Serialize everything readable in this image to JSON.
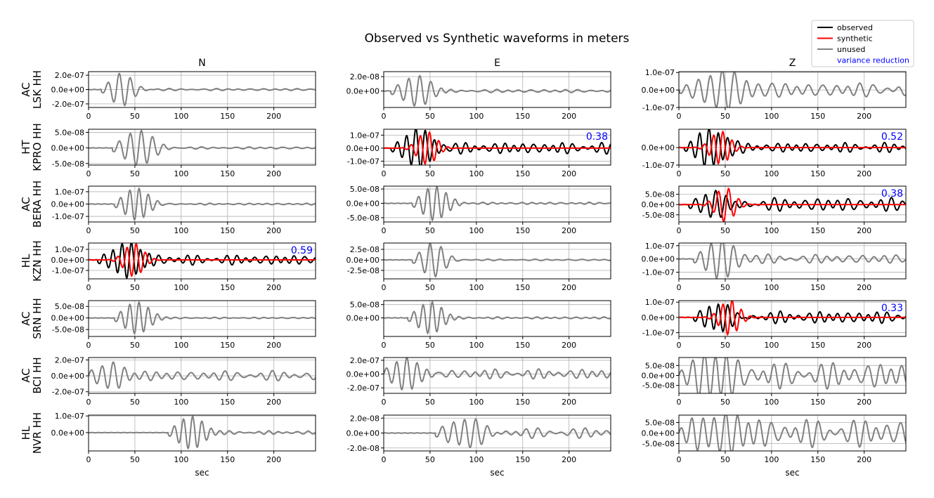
{
  "title": "Observed vs Synthetic waveforms in meters",
  "components": [
    "N",
    "E",
    "Z"
  ],
  "xlabel": "sec",
  "xlim": [
    0,
    245
  ],
  "xticks": [
    0,
    50,
    100,
    150,
    200
  ],
  "legend": {
    "placement": "top-right",
    "entries": [
      {
        "label": "observed",
        "color": "#000000"
      },
      {
        "label": "synthetic",
        "color": "#ff0000"
      },
      {
        "label": "unused",
        "color": "#808080"
      },
      {
        "label": "variance reduction",
        "color": "#0000ff",
        "text_only": true
      }
    ]
  },
  "colors": {
    "observed": "#000000",
    "synthetic": "#ff0000",
    "unused": "#808080",
    "variance_reduction": "#0000ff"
  },
  "chart_data": {
    "type": "line",
    "grid": true,
    "rows": [
      {
        "station": "AC\nLSK HH",
        "panels": [
          {
            "comp": "N",
            "ylim": [
              -2.5e-07,
              2.5e-07
            ],
            "yticks": [
              -2e-07,
              0,
              2e-07
            ],
            "yticklabels": [
              "-2.0e-07",
              "0.0e+00",
              "2.0e-07"
            ],
            "used": false,
            "vr": null,
            "amp": 2.3e-07,
            "onset": 18,
            "period": 12,
            "cycles": 3,
            "coda": 0.06
          },
          {
            "comp": "E",
            "ylim": [
              -2.3e-08,
              2.7e-08
            ],
            "yticks": [
              0,
              2e-08
            ],
            "yticklabels": [
              "0.0e+00",
              "2.0e-08"
            ],
            "used": false,
            "vr": null,
            "amp": 2.2e-08,
            "onset": 12,
            "period": 12,
            "cycles": 4,
            "coda": 0.1
          },
          {
            "comp": "Z",
            "ylim": [
              -1e-07,
              1.05e-07
            ],
            "yticks": [
              -1e-07,
              0,
              1e-07
            ],
            "yticklabels": [
              "-1.0e-07",
              "0.0e+00",
              "1.0e-07"
            ],
            "used": false,
            "vr": null,
            "amp": 8e-08,
            "onset": 5,
            "period": 13,
            "cycles": 6,
            "coda": 0.5
          }
        ]
      },
      {
        "station": "HT\nKPRO HH",
        "panels": [
          {
            "comp": "N",
            "ylim": [
              -5.5e-08,
              6e-08
            ],
            "yticks": [
              -5e-08,
              0,
              5e-08
            ],
            "yticklabels": [
              "-5.0e-08",
              "0.0e+00",
              "5.0e-08"
            ],
            "used": false,
            "vr": null,
            "amp": 5.5e-08,
            "onset": 30,
            "period": 12,
            "cycles": 4,
            "coda": 0.06
          },
          {
            "comp": "E",
            "ylim": [
              -1.3e-07,
              1.45e-07
            ],
            "yticks": [
              -1e-07,
              0,
              1e-07
            ],
            "yticklabels": [
              "-1.0e-07",
              "0.0e+00",
              "1.0e-07"
            ],
            "used": true,
            "vr": "0.38",
            "amp": 1.2e-07,
            "onset": 12,
            "period": 10,
            "cycles": 5,
            "coda": 0.35
          },
          {
            "comp": "Z",
            "ylim": [
              -1e-07,
              1.05e-07
            ],
            "yticks": [
              -1e-07,
              0
            ],
            "yticklabels": [
              "-1.0e-07",
              "0.0e+00"
            ],
            "used": true,
            "vr": "0.52",
            "amp": 9e-08,
            "onset": 10,
            "period": 10,
            "cycles": 5,
            "coda": 0.3
          }
        ]
      },
      {
        "station": "AC\nBERA HH",
        "panels": [
          {
            "comp": "N",
            "ylim": [
              -1.45e-07,
              1.45e-07
            ],
            "yticks": [
              -1e-07,
              0,
              1e-07
            ],
            "yticklabels": [
              "-1.0e-07",
              "0.0e+00",
              "1.0e-07"
            ],
            "used": false,
            "vr": null,
            "amp": 1.3e-07,
            "onset": 32,
            "period": 10,
            "cycles": 4,
            "coda": 0.05
          },
          {
            "comp": "E",
            "ylim": [
              -6.5e-08,
              6e-08
            ],
            "yticks": [
              -5e-08,
              0,
              5e-08
            ],
            "yticklabels": [
              "-5.0e-08",
              "0.0e+00",
              "5.0e-08"
            ],
            "used": false,
            "vr": null,
            "amp": 6e-08,
            "onset": 35,
            "period": 10,
            "cycles": 4,
            "coda": 0.06
          },
          {
            "comp": "Z",
            "ylim": [
              -8.5e-08,
              9e-08
            ],
            "yticks": [
              -5e-08,
              0,
              5e-08
            ],
            "yticklabels": [
              "-5.0e-08",
              "0.0e+00",
              "5.0e-08"
            ],
            "used": true,
            "vr": "0.38",
            "amp": 8e-08,
            "onset": 15,
            "period": 11,
            "cycles": 5,
            "coda": 0.4
          }
        ]
      },
      {
        "station": "HL\nKZN HH",
        "panels": [
          {
            "comp": "N",
            "ylim": [
              -1.8e-07,
              1.6e-07
            ],
            "yticks": [
              -1e-07,
              0,
              1e-07
            ],
            "yticklabels": [
              "-1.0e-07",
              "0.0e+00",
              "1.0e-07"
            ],
            "used": true,
            "vr": "0.59",
            "amp": 1.5e-07,
            "onset": 14,
            "period": 10,
            "cycles": 5,
            "coda": 0.3
          },
          {
            "comp": "E",
            "ylim": [
              -4.5e-08,
              4e-08
            ],
            "yticks": [
              -2.5e-08,
              0,
              2.5e-08
            ],
            "yticklabels": [
              "-2.5e-08",
              "0.0e+00",
              "2.5e-08"
            ],
            "used": false,
            "vr": null,
            "amp": 4e-08,
            "onset": 35,
            "period": 12,
            "cycles": 3,
            "coda": 0.04
          },
          {
            "comp": "Z",
            "ylim": [
              -1.5e-07,
              1.2e-07
            ],
            "yticks": [
              -1e-07,
              0,
              1e-07
            ],
            "yticklabels": [
              "-1.0e-07",
              "0.0e+00",
              "1.0e-07"
            ],
            "used": false,
            "vr": null,
            "amp": 1.3e-07,
            "onset": 20,
            "period": 12,
            "cycles": 4,
            "coda": 0.25
          }
        ]
      },
      {
        "station": "AC\nSRN HH",
        "panels": [
          {
            "comp": "N",
            "ylim": [
              -8e-08,
              7.5e-08
            ],
            "yticks": [
              -5e-08,
              0,
              5e-08
            ],
            "yticklabels": [
              "-5.0e-08",
              "0.0e+00",
              "5.0e-08"
            ],
            "used": false,
            "vr": null,
            "amp": 7e-08,
            "onset": 32,
            "period": 10,
            "cycles": 4,
            "coda": 0.04
          },
          {
            "comp": "E",
            "ylim": [
              -7e-08,
              6.5e-08
            ],
            "yticks": [
              0,
              5e-08
            ],
            "yticklabels": [
              "0.0e+00",
              "5.0e-08"
            ],
            "used": false,
            "vr": null,
            "amp": 6e-08,
            "onset": 30,
            "period": 10,
            "cycles": 4,
            "coda": 0.06
          },
          {
            "comp": "Z",
            "ylim": [
              -1.25e-07,
              1.1e-07
            ],
            "yticks": [
              -1e-07,
              0,
              1e-07
            ],
            "yticklabels": [
              "-1.0e-07",
              "0.0e+00",
              "1.0e-07"
            ],
            "used": true,
            "vr": "0.33",
            "amp": 1.1e-07,
            "onset": 20,
            "period": 10,
            "cycles": 5,
            "coda": 0.35
          }
        ]
      },
      {
        "station": "AC\nBCI HH",
        "panels": [
          {
            "comp": "N",
            "ylim": [
              -2.2e-07,
              2.3e-07
            ],
            "yticks": [
              -2e-07,
              0,
              2e-07
            ],
            "yticklabels": [
              "-2.0e-07",
              "0.0e+00",
              "2.0e-07"
            ],
            "used": false,
            "vr": null,
            "amp": 2e-07,
            "onset": 0,
            "period": 12,
            "cycles": 4,
            "coda": 0.3
          },
          {
            "comp": "E",
            "ylim": [
              -2.8e-07,
              2.4e-07
            ],
            "yticks": [
              -2e-07,
              0,
              2e-07
            ],
            "yticklabels": [
              "-2.0e-07",
              "0.0e+00",
              "2.0e-07"
            ],
            "used": false,
            "vr": null,
            "amp": 2.3e-07,
            "onset": 0,
            "period": 11,
            "cycles": 5,
            "coda": 0.3
          },
          {
            "comp": "Z",
            "ylim": [
              -9e-08,
              9e-08
            ],
            "yticks": [
              -5e-08,
              0,
              5e-08
            ],
            "yticklabels": [
              "-5.0e-08",
              "0.0e+00",
              "5.0e-08"
            ],
            "used": false,
            "vr": null,
            "amp": 7e-08,
            "onset": 0,
            "period": 12,
            "cycles": 6,
            "coda": 0.9
          }
        ]
      },
      {
        "station": "HL\nNVR HH",
        "panels": [
          {
            "comp": "N",
            "ylim": [
              -1.1e-07,
              1.05e-07
            ],
            "yticks": [
              0,
              1e-07
            ],
            "yticklabels": [
              "0.0e+00",
              "1.0e-07"
            ],
            "used": false,
            "vr": null,
            "amp": 1e-07,
            "onset": 90,
            "period": 10,
            "cycles": 4,
            "coda": 0.1
          },
          {
            "comp": "E",
            "ylim": [
              -2.4e-08,
              2.4e-08
            ],
            "yticks": [
              -2e-08,
              0,
              2e-08
            ],
            "yticklabels": [
              "-2.0e-08",
              "0.0e+00",
              "2.0e-08"
            ],
            "used": false,
            "vr": null,
            "amp": 2.2e-08,
            "onset": 60,
            "period": 12,
            "cycles": 5,
            "coda": 0.3
          },
          {
            "comp": "Z",
            "ylim": [
              -8.5e-08,
              8.5e-08
            ],
            "yticks": [
              -5e-08,
              0,
              5e-08
            ],
            "yticklabels": [
              "-5.0e-08",
              "0.0e+00",
              "5.0e-08"
            ],
            "used": false,
            "vr": null,
            "amp": 7e-08,
            "onset": 0,
            "period": 12,
            "cycles": 6,
            "coda": 0.9
          }
        ]
      }
    ]
  }
}
